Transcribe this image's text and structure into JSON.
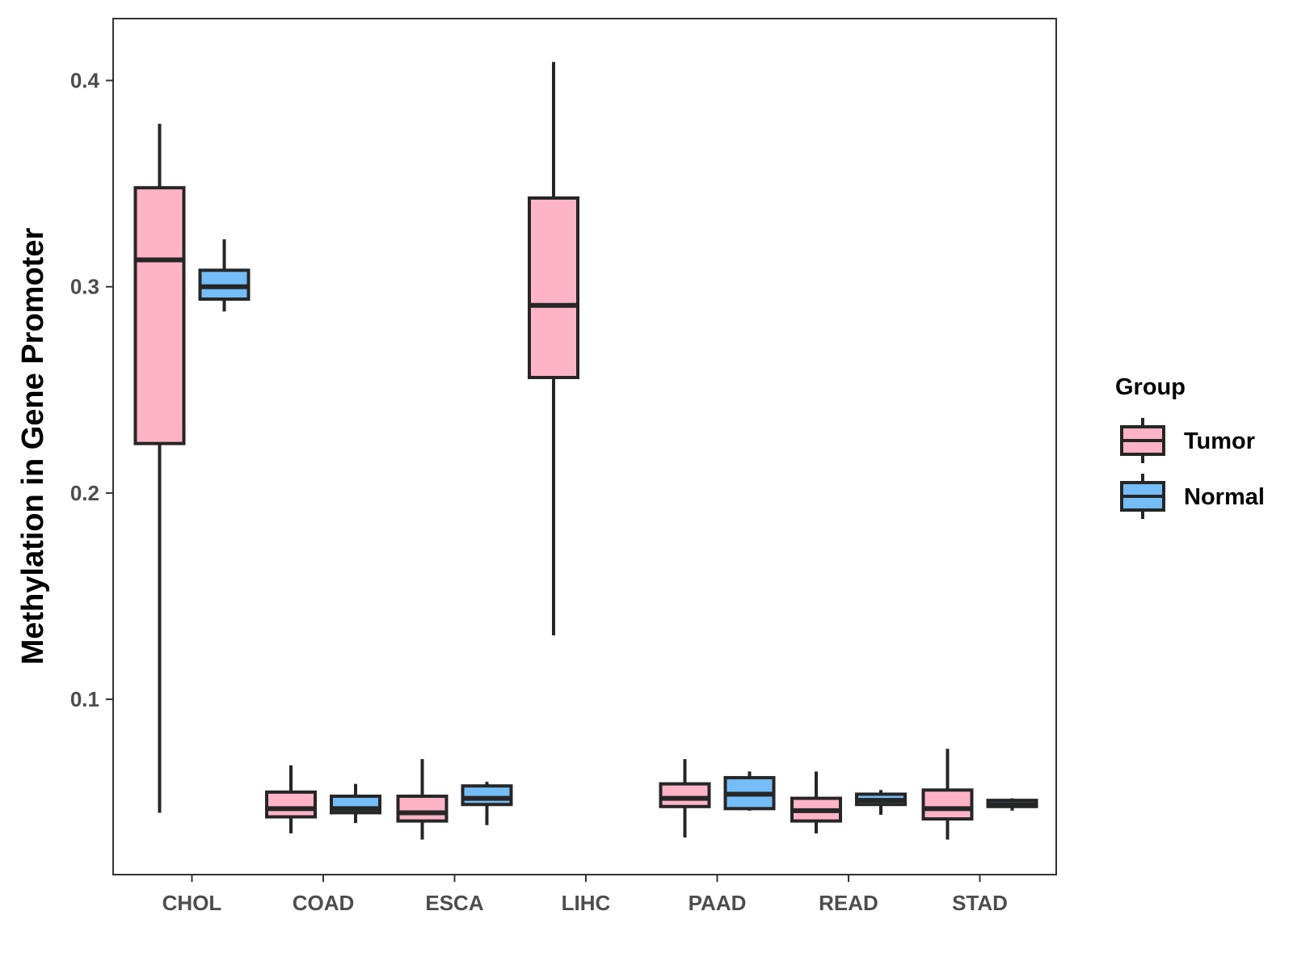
{
  "chart_data": {
    "type": "boxplot",
    "title": "",
    "xlabel": "",
    "ylabel": "Methylation in Gene Promoter",
    "ylim": [
      0.015,
      0.43
    ],
    "yticks": [
      "0.1",
      "0.2",
      "0.3",
      "0.4"
    ],
    "grid": false,
    "legend": {
      "title": "Group",
      "position": "right"
    },
    "categories": [
      "CHOL",
      "COAD",
      "ESCA",
      "LIHC",
      "PAAD",
      "READ",
      "STAD"
    ],
    "series": [
      {
        "name": "Tumor",
        "color": "#FFB3C6",
        "boxes": [
          {
            "min": 0.045,
            "q1": 0.224,
            "median": 0.313,
            "q3": 0.348,
            "max": 0.379
          },
          {
            "min": 0.035,
            "q1": 0.043,
            "median": 0.047,
            "q3": 0.055,
            "max": 0.068
          },
          {
            "min": 0.032,
            "q1": 0.041,
            "median": 0.045,
            "q3": 0.053,
            "max": 0.071
          },
          {
            "min": 0.131,
            "q1": 0.256,
            "median": 0.291,
            "q3": 0.343,
            "max": 0.409
          },
          {
            "min": 0.033,
            "q1": 0.048,
            "median": 0.052,
            "q3": 0.059,
            "max": 0.071
          },
          {
            "min": 0.035,
            "q1": 0.041,
            "median": 0.046,
            "q3": 0.052,
            "max": 0.065
          },
          {
            "min": 0.032,
            "q1": 0.042,
            "median": 0.047,
            "q3": 0.056,
            "max": 0.076
          }
        ]
      },
      {
        "name": "Normal",
        "color": "#74BDF7",
        "boxes": [
          {
            "min": 0.288,
            "q1": 0.294,
            "median": 0.3,
            "q3": 0.308,
            "max": 0.323
          },
          {
            "min": 0.04,
            "q1": 0.045,
            "median": 0.047,
            "q3": 0.053,
            "max": 0.059
          },
          {
            "min": 0.039,
            "q1": 0.049,
            "median": 0.052,
            "q3": 0.058,
            "max": 0.06
          },
          null,
          {
            "min": 0.046,
            "q1": 0.047,
            "median": 0.054,
            "q3": 0.062,
            "max": 0.065
          },
          {
            "min": 0.044,
            "q1": 0.049,
            "median": 0.051,
            "q3": 0.054,
            "max": 0.056
          },
          {
            "min": 0.046,
            "q1": 0.048,
            "median": 0.049,
            "q3": 0.051,
            "max": 0.052
          }
        ]
      }
    ]
  }
}
